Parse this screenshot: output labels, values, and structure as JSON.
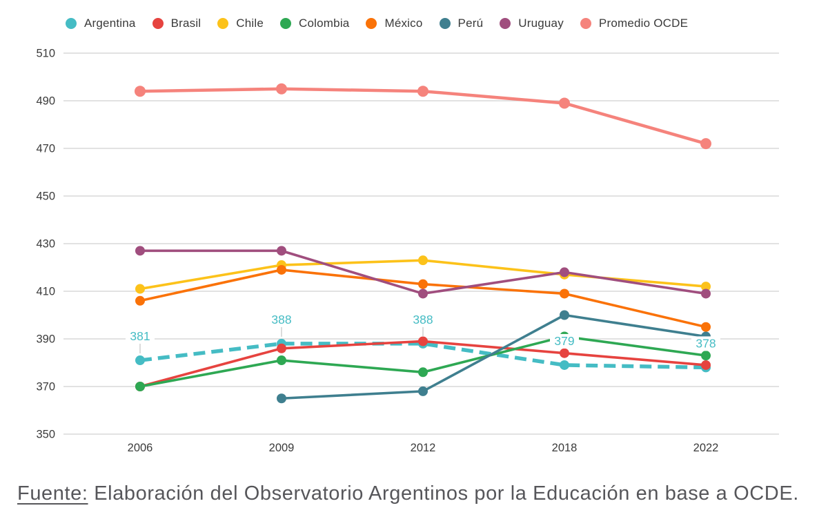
{
  "chart_data": {
    "type": "line",
    "title": "",
    "xlabel": "",
    "ylabel": "",
    "categories": [
      "2006",
      "2009",
      "2012",
      "2018",
      "2022"
    ],
    "y_ticks": [
      350,
      370,
      390,
      410,
      430,
      450,
      470,
      490,
      510
    ],
    "ylim": [
      350,
      510
    ],
    "grid": "horizontal-only",
    "legend_position": "top",
    "label_color": "#45BCC4",
    "grid_color": "#d9d9d9",
    "axis_text_color": "#3b3b3b",
    "series": [
      {
        "name": "Argentina",
        "color": "#45BCC4",
        "dashed": true,
        "line_width": 5.5,
        "values": [
          381,
          388,
          388,
          379,
          378
        ],
        "point_labels": {
          "show": true,
          "leaders": [
            true,
            true,
            true,
            false,
            false
          ]
        }
      },
      {
        "name": "Brasil",
        "color": "#E6433F",
        "values": [
          370,
          386,
          389,
          384,
          379
        ]
      },
      {
        "name": "Chile",
        "color": "#FCC21A",
        "values": [
          411,
          421,
          423,
          417,
          412
        ]
      },
      {
        "name": "Colombia",
        "color": "#2EA853",
        "values": [
          370,
          381,
          376,
          391,
          383
        ]
      },
      {
        "name": "México",
        "color": "#FA7208",
        "values": [
          406,
          419,
          413,
          409,
          395
        ]
      },
      {
        "name": "Perú",
        "color": "#3F7F8F",
        "values": [
          null,
          365,
          368,
          400,
          391
        ]
      },
      {
        "name": "Uruguay",
        "color": "#A04E7E",
        "values": [
          427,
          427,
          409,
          418,
          409
        ]
      },
      {
        "name": "Promedio OCDE",
        "color": "#F5837C",
        "line_width": 4.5,
        "marker_radius": 8,
        "values": [
          494,
          495,
          494,
          489,
          472
        ]
      }
    ]
  },
  "footer": {
    "label": "Fuente:",
    "text": " Elaboración del Observatorio Argentinos por la Educación en base a OCDE."
  }
}
